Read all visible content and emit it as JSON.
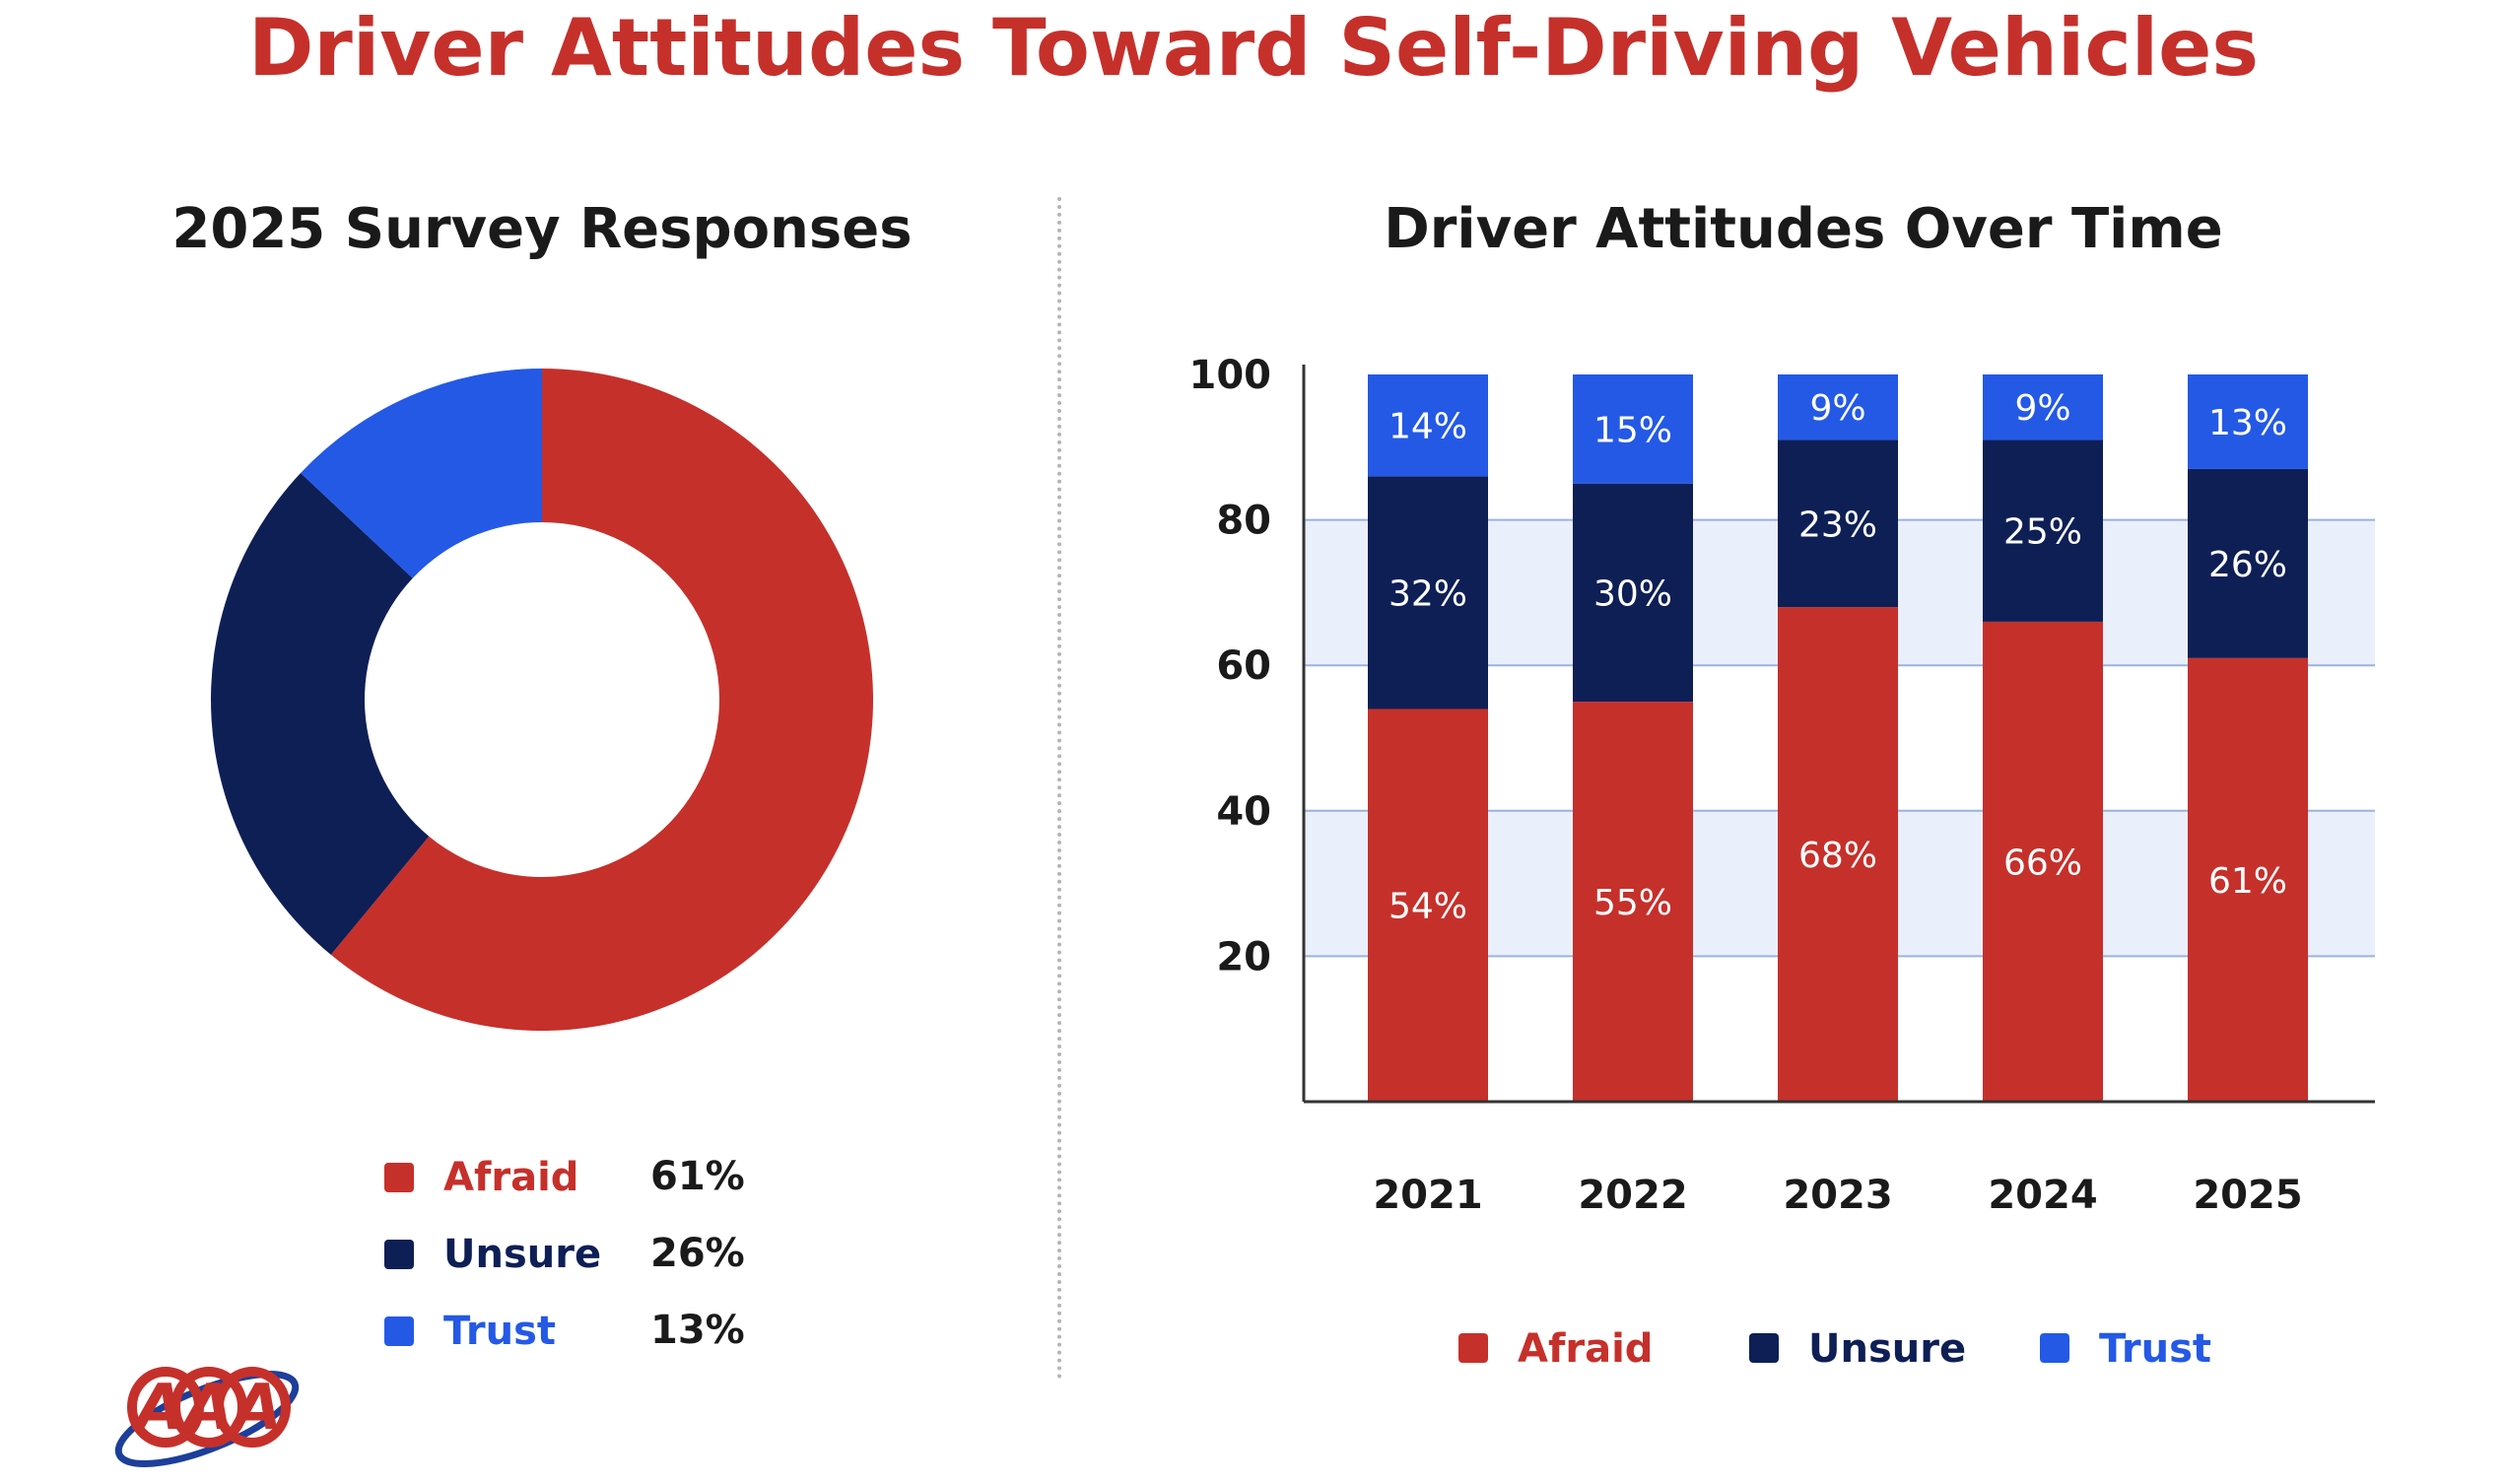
{
  "title": "Driver Attitudes Toward Self-Driving Vehicles",
  "colors": {
    "Afraid": "#c6302b",
    "Unsure": "#0e1f56",
    "Trust": "#2459e6",
    "title": "#c6302b",
    "band": "#e9effb",
    "grid": "#9bb2e0"
  },
  "logo": "aaa-logo",
  "chart_data": [
    {
      "type": "pie",
      "title": "2025 Survey Responses",
      "categories": [
        "Afraid",
        "Unsure",
        "Trust"
      ],
      "values": [
        61,
        26,
        13
      ],
      "value_labels": [
        "61%",
        "26%",
        "13%"
      ],
      "donut": true,
      "legend": "bottom"
    },
    {
      "type": "bar",
      "stacked": true,
      "title": "Driver Attitudes Over Time",
      "categories": [
        "2021",
        "2022",
        "2023",
        "2024",
        "2025"
      ],
      "series": [
        {
          "name": "Afraid",
          "values": [
            54,
            55,
            68,
            66,
            61
          ]
        },
        {
          "name": "Unsure",
          "values": [
            32,
            30,
            23,
            25,
            26
          ]
        },
        {
          "name": "Trust",
          "values": [
            14,
            15,
            9,
            9,
            13
          ]
        }
      ],
      "yticks": [
        20,
        40,
        60,
        80,
        100
      ],
      "ylim": [
        0,
        100
      ],
      "grid": true,
      "legend": "bottom"
    }
  ]
}
